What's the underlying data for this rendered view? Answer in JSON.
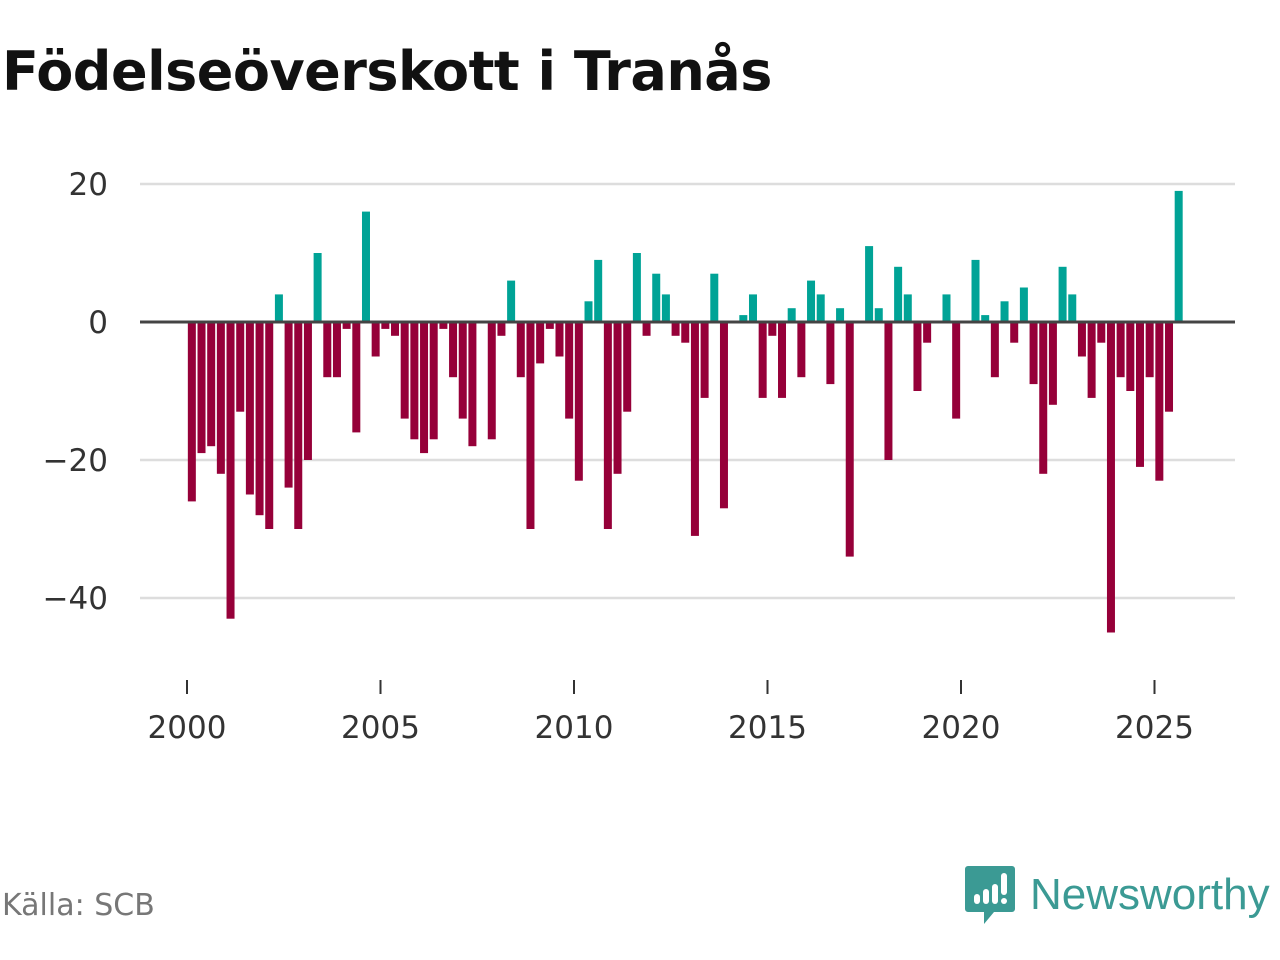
{
  "title": "Födelseöverskott i Tranås",
  "source": "Källa: SCB",
  "brand": "Newsworthy",
  "colors": {
    "positive": "#00a396",
    "negative": "#960039",
    "grid": "#dddddd",
    "zero": "#444444",
    "brand": "#3b9a94"
  },
  "chart_data": {
    "type": "bar",
    "title": "Födelseöverskott i Tranås",
    "xlabel": "",
    "ylabel": "",
    "frequency": "quarterly",
    "start": {
      "year": 2000,
      "quarter": 1
    },
    "xticks": [
      "2000",
      "2005",
      "2010",
      "2015",
      "2020",
      "2025"
    ],
    "yticks": [
      20,
      0,
      -20,
      -40
    ],
    "ytick_labels": [
      "20",
      "0",
      "−20",
      "−40"
    ],
    "ylim": [
      -50,
      20
    ],
    "grid": true,
    "values": [
      -26,
      -19,
      -18,
      -22,
      -43,
      -13,
      -25,
      -28,
      -30,
      4,
      -24,
      -30,
      -20,
      10,
      -8,
      -8,
      -1,
      -16,
      16,
      -5,
      -1,
      -2,
      -14,
      -17,
      -19,
      -17,
      -1,
      -8,
      -14,
      -18,
      0,
      -17,
      -2,
      6,
      -8,
      -30,
      -6,
      -1,
      -5,
      -14,
      -23,
      3,
      9,
      -30,
      -22,
      -13,
      10,
      -2,
      7,
      4,
      -2,
      -3,
      -31,
      -11,
      7,
      -27,
      0,
      1,
      4,
      -11,
      -2,
      -11,
      2,
      -8,
      6,
      4,
      -9,
      2,
      -34,
      0,
      11,
      2,
      -20,
      8,
      4,
      -10,
      -3,
      0,
      4,
      -14,
      0,
      9,
      1,
      -8,
      3,
      -3,
      5,
      -9,
      -22,
      -12,
      8,
      4,
      -5,
      -11,
      -3,
      -45,
      -8,
      -10,
      -21,
      -8,
      -23,
      -13,
      19
    ]
  }
}
